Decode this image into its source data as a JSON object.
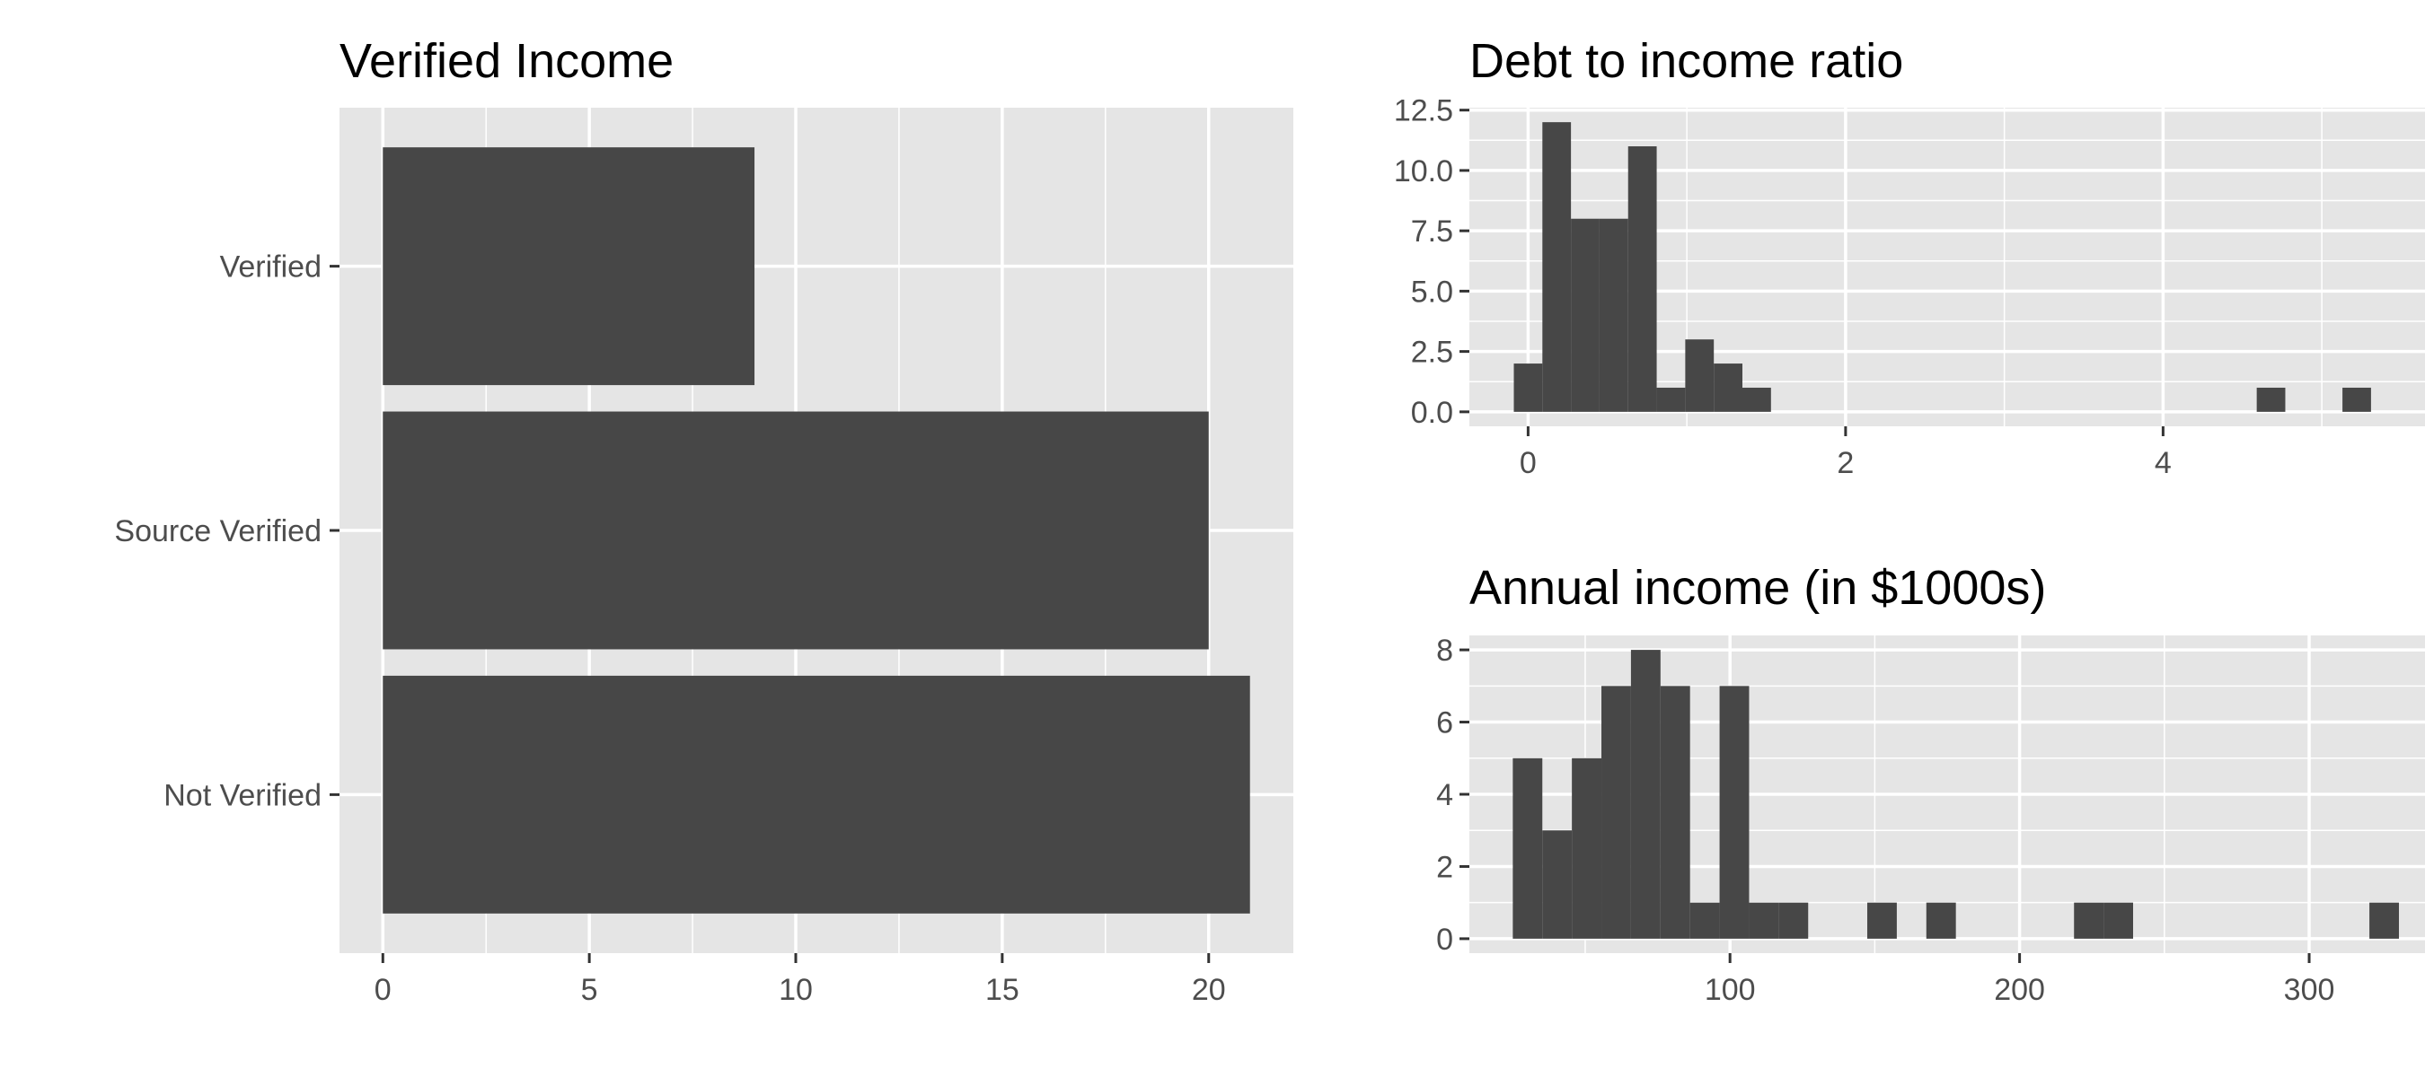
{
  "chart_data": [
    {
      "type": "bar",
      "orientation": "horizontal",
      "title": "Verified Income",
      "xlabel": "",
      "ylabel": "",
      "categories": [
        "Verified",
        "Source Verified",
        "Not Verified"
      ],
      "values": [
        9,
        20,
        21
      ],
      "xlim": [
        -1.05,
        22.05
      ],
      "x_ticks": [
        0,
        5,
        10,
        15,
        20
      ],
      "x_tick_labels": [
        "0",
        "5",
        "10",
        "15",
        "20"
      ],
      "grid": true,
      "bar_color": "#474747"
    },
    {
      "type": "histogram",
      "title": "Debt to income ratio",
      "xlabel": "",
      "ylabel": "",
      "bin_width": 0.18,
      "bin_start": -0.09,
      "values": [
        2,
        12,
        8,
        8,
        11,
        1,
        3,
        2,
        1,
        0,
        0,
        0,
        0,
        0,
        0,
        0,
        0,
        0,
        0,
        0,
        0,
        0,
        0,
        0,
        0,
        0,
        1,
        0,
        0,
        1
      ],
      "xlim": [
        -0.37,
        5.65
      ],
      "ylim": [
        -0.6,
        12.6
      ],
      "x_ticks": [
        0,
        2,
        4
      ],
      "x_tick_labels": [
        "0",
        "2",
        "4"
      ],
      "y_ticks": [
        0,
        2.5,
        5,
        7.5,
        10,
        12.5
      ],
      "y_tick_labels": [
        "0.0",
        "2.5",
        "5.0",
        "7.5",
        "10.0",
        "12.5"
      ],
      "grid": true,
      "bar_color": "#474747"
    },
    {
      "type": "histogram",
      "title": "Annual income (in $1000s)",
      "xlabel": "",
      "ylabel": "",
      "bin_width": 10.2,
      "bin_start": 25,
      "values": [
        5,
        3,
        5,
        7,
        8,
        7,
        1,
        7,
        1,
        1,
        0,
        0,
        1,
        0,
        1,
        0,
        0,
        0,
        0,
        1,
        1,
        0,
        0,
        0,
        0,
        0,
        0,
        0,
        0,
        1
      ],
      "xlim": [
        10,
        340
      ],
      "ylim": [
        -0.4,
        8.4
      ],
      "x_ticks": [
        100,
        200,
        300
      ],
      "x_tick_labels": [
        "100",
        "200",
        "300"
      ],
      "y_ticks": [
        0,
        2,
        4,
        6,
        8
      ],
      "y_tick_labels": [
        "0",
        "2",
        "4",
        "6",
        "8"
      ],
      "grid": true,
      "bar_color": "#474747"
    }
  ],
  "colors": {
    "panel_background": "#e5e5e5",
    "grid_line": "#ffffff",
    "tick_mark": "#333333",
    "tick_text": "#4d4d4d",
    "title_text": "#000000"
  }
}
